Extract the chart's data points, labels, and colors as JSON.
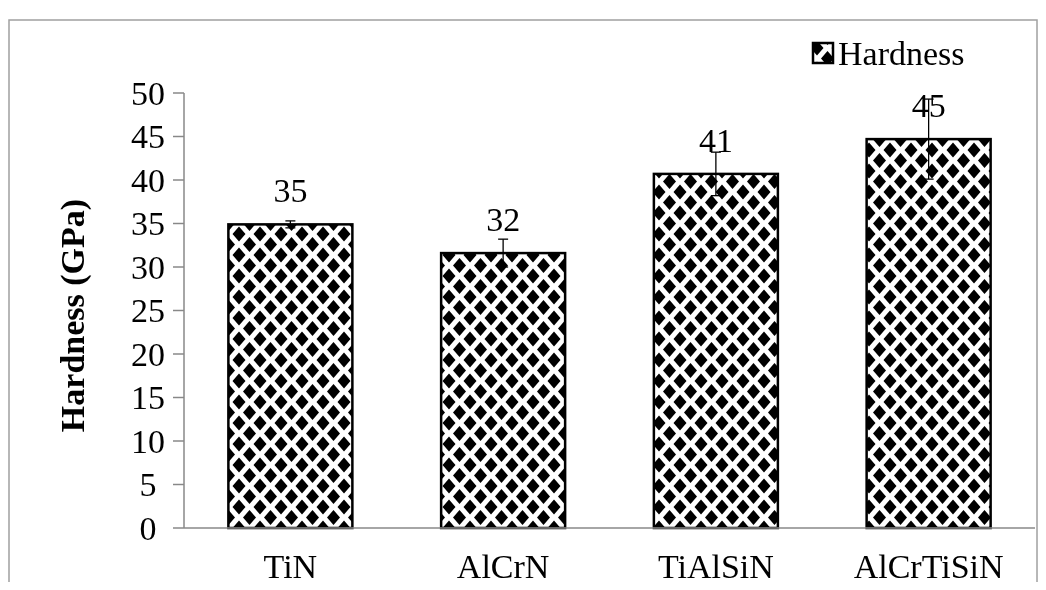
{
  "chart_data": {
    "type": "bar",
    "ylabel": "Hardness (GPa)",
    "categories": [
      "TiN",
      "AlCrN",
      "TiAlSiN",
      "AlCrTiSiN"
    ],
    "series": [
      {
        "name": "Hardness",
        "color": "#000000",
        "values": [
          34.9,
          31.6,
          40.7,
          44.7
        ],
        "errors": [
          0.4,
          1.6,
          2.5,
          4.6
        ],
        "value_labels": [
          "35",
          "32",
          "41",
          "45"
        ]
      }
    ],
    "ylim": [
      0,
      50
    ],
    "yticks": [
      0,
      5,
      10,
      15,
      20,
      25,
      30,
      35,
      40,
      45,
      50
    ],
    "grid": false,
    "legend": "top right"
  }
}
